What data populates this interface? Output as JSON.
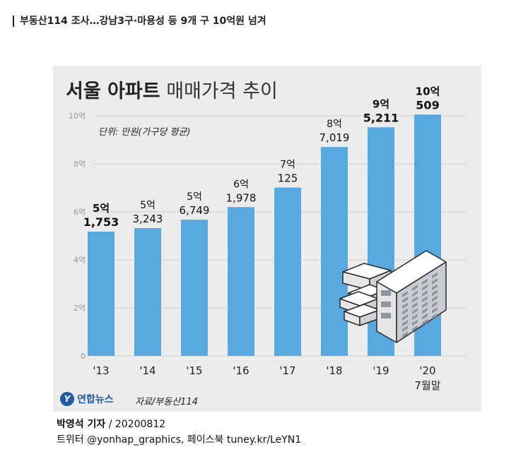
{
  "headline": "부동산114 조사…강남3구·마용성 등 9개 구 10억원 넘겨",
  "chart": {
    "title_bold": "서울 아파트",
    "title_light": " 매매가격 추이",
    "unit": "단위: 만원(가구당 평균)",
    "source": "자료/부동산114",
    "logo_text": "연합뉴스",
    "logo_mark": "Y"
  },
  "chart_data": {
    "type": "bar",
    "title": "서울 아파트 매매가격 추이",
    "ylabel": "",
    "xlabel": "",
    "ylim": [
      0,
      100000
    ],
    "y_ticks": [
      {
        "value": 0,
        "label": "0"
      },
      {
        "value": 20000,
        "label": "2억"
      },
      {
        "value": 40000,
        "label": "4억"
      },
      {
        "value": 60000,
        "label": "6억"
      },
      {
        "value": 80000,
        "label": "8억"
      },
      {
        "value": 100000,
        "label": "10억"
      }
    ],
    "categories": [
      "'13",
      "'14",
      "'15",
      "'16",
      "'17",
      "'18",
      "'19",
      "'20\n7월말"
    ],
    "values": [
      51753,
      53243,
      56749,
      61978,
      70125,
      87019,
      95211,
      100509
    ],
    "labels_top": [
      "5억",
      "5억",
      "5억",
      "6억",
      "7억",
      "8억",
      "9억",
      "10억"
    ],
    "labels_bottom": [
      "1,753",
      "3,243",
      "6,749",
      "1,978",
      "125",
      "7,019",
      "5,211",
      "509"
    ],
    "label_bold": [
      true,
      false,
      false,
      false,
      false,
      false,
      true,
      true
    ],
    "colors": {
      "bar": "#58a9df",
      "background": "#ececec",
      "grid": "#cfcfcf"
    }
  },
  "credit": {
    "author": "박영석 기자",
    "date": " / 20200812",
    "social": "트위터 @yonhap_graphics, 페이스북 tuney.kr/LeYN1"
  }
}
